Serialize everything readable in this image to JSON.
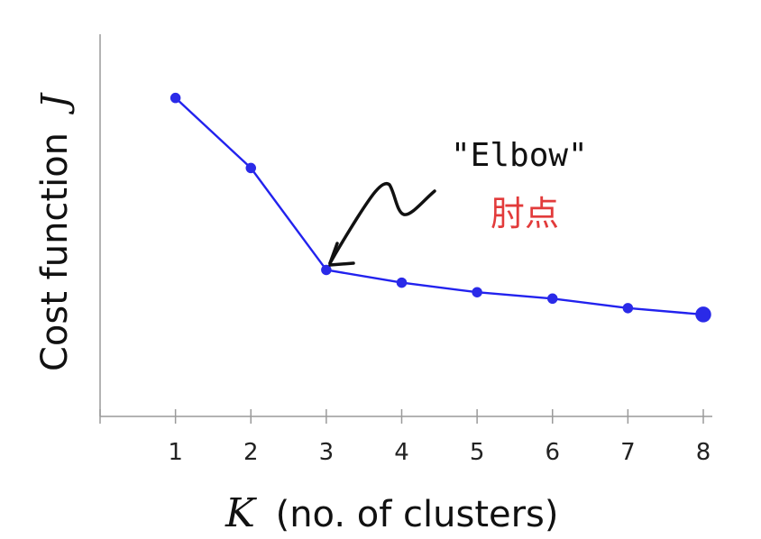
{
  "chart_data": {
    "type": "line",
    "x": [
      1,
      2,
      3,
      4,
      5,
      6,
      7,
      8
    ],
    "values": [
      10.0,
      7.8,
      4.6,
      4.2,
      3.9,
      3.7,
      3.4,
      3.2
    ],
    "xlim": [
      0,
      8
    ],
    "ylim": [
      0,
      12
    ],
    "tick_labels": [
      "1",
      "2",
      "3",
      "4",
      "5",
      "6",
      "7",
      "8"
    ],
    "ylabel_text": "Cost function",
    "ylabel_symbol": "J",
    "xlabel_symbol": "K",
    "xlabel_text": "(no. of clusters)",
    "grid": false,
    "series_color": "#2222ee"
  },
  "annotations": {
    "elbow_label": "\"Elbow\"",
    "elbow_label_cn": "肘点"
  }
}
